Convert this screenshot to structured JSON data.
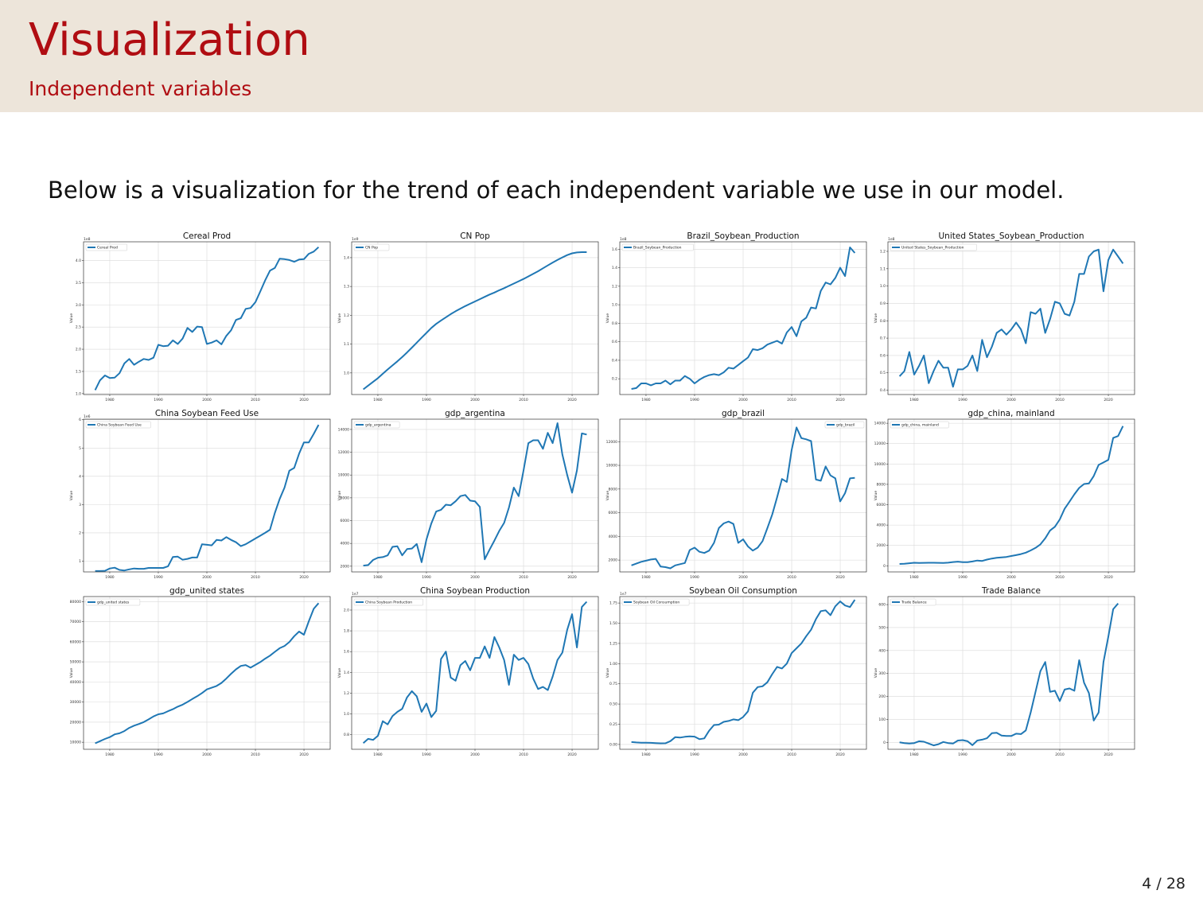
{
  "slide": {
    "title": "Visualization",
    "subtitle": "Independent variables",
    "intro": "Below is a visualization for the trend of each independent variable we use in our model.",
    "page_number": "4 / 28"
  },
  "colors": {
    "header_bg": "#ede5da",
    "title_red": "#b00d12",
    "line_blue": "#1f77b4",
    "grid": "#d9d9d9"
  },
  "chart_data": [
    {
      "type": "line",
      "title": "Cereal Prod",
      "ylabel": "Value",
      "offset_label": "1e8",
      "legend": "upper left",
      "ylim": [
        0.98,
        4.42
      ],
      "yticks": [
        "1.0",
        "1.5",
        "2.0",
        "2.5",
        "3.0",
        "3.5",
        "4.0"
      ],
      "ytick_values": [
        1.0,
        1.5,
        2.0,
        2.5,
        3.0,
        3.5,
        4.0
      ],
      "series": [
        {
          "name": "Cereal Prod",
          "x_start": 1977,
          "values": [
            1.08,
            1.3,
            1.41,
            1.35,
            1.36,
            1.46,
            1.68,
            1.78,
            1.65,
            1.72,
            1.78,
            1.76,
            1.81,
            2.1,
            2.07,
            2.08,
            2.2,
            2.12,
            2.24,
            2.48,
            2.39,
            2.51,
            2.5,
            2.12,
            2.15,
            2.2,
            2.11,
            2.3,
            2.43,
            2.66,
            2.7,
            2.91,
            2.93,
            3.06,
            3.3,
            3.55,
            3.77,
            3.83,
            4.04,
            4.03,
            4.01,
            3.97,
            4.02,
            4.03,
            4.15,
            4.2,
            4.3
          ]
        }
      ]
    },
    {
      "type": "line",
      "title": "CN Pop",
      "ylabel": "Value",
      "offset_label": "1e9",
      "legend": "upper left",
      "ylim": [
        0.925,
        1.455
      ],
      "yticks": [
        "1.0",
        "1.1",
        "1.2",
        "1.3",
        "1.4"
      ],
      "ytick_values": [
        1.0,
        1.1,
        1.2,
        1.3,
        1.4
      ],
      "series": [
        {
          "name": "CN Pop",
          "x_start": 1977,
          "values": [
            0.943,
            0.956,
            0.969,
            0.982,
            0.997,
            1.012,
            1.026,
            1.04,
            1.055,
            1.071,
            1.088,
            1.105,
            1.122,
            1.139,
            1.156,
            1.17,
            1.182,
            1.193,
            1.204,
            1.214,
            1.223,
            1.232,
            1.24,
            1.248,
            1.256,
            1.264,
            1.272,
            1.279,
            1.287,
            1.294,
            1.302,
            1.31,
            1.318,
            1.326,
            1.335,
            1.344,
            1.353,
            1.363,
            1.373,
            1.383,
            1.392,
            1.401,
            1.409,
            1.415,
            1.418,
            1.419,
            1.419
          ]
        }
      ]
    },
    {
      "type": "line",
      "title": "Brazil_Soybean_Production",
      "ylabel": "Value",
      "offset_label": "1e8",
      "legend": "upper left",
      "ylim": [
        0.03,
        1.68
      ],
      "yticks": [
        "0.2",
        "0.4",
        "0.6",
        "0.8",
        "1.0",
        "1.2",
        "1.4",
        "1.6"
      ],
      "ytick_values": [
        0.2,
        0.4,
        0.6,
        0.8,
        1.0,
        1.2,
        1.4,
        1.6
      ],
      "series": [
        {
          "name": "Brazil_Soybean_Production",
          "x_start": 1977,
          "values": [
            0.09,
            0.1,
            0.15,
            0.15,
            0.13,
            0.15,
            0.15,
            0.18,
            0.14,
            0.18,
            0.18,
            0.23,
            0.2,
            0.15,
            0.19,
            0.22,
            0.24,
            0.25,
            0.24,
            0.27,
            0.32,
            0.31,
            0.35,
            0.39,
            0.43,
            0.52,
            0.51,
            0.53,
            0.57,
            0.59,
            0.61,
            0.58,
            0.7,
            0.76,
            0.66,
            0.82,
            0.86,
            0.97,
            0.96,
            1.15,
            1.24,
            1.22,
            1.29,
            1.4,
            1.31,
            1.62,
            1.56
          ]
        }
      ]
    },
    {
      "type": "line",
      "title": "United States_Soybean_Production",
      "ylabel": "Value",
      "offset_label": "1e8",
      "legend": "upper left",
      "ylim": [
        0.375,
        1.255
      ],
      "yticks": [
        "0.4",
        "0.5",
        "0.6",
        "0.7",
        "0.8",
        "0.9",
        "1.0",
        "1.1",
        "1.2"
      ],
      "ytick_values": [
        0.4,
        0.5,
        0.6,
        0.7,
        0.8,
        0.9,
        1.0,
        1.1,
        1.2
      ],
      "series": [
        {
          "name": "United States_Soybean_Production",
          "x_start": 1977,
          "values": [
            0.48,
            0.51,
            0.62,
            0.49,
            0.54,
            0.6,
            0.44,
            0.51,
            0.57,
            0.53,
            0.53,
            0.42,
            0.52,
            0.52,
            0.54,
            0.6,
            0.51,
            0.69,
            0.59,
            0.65,
            0.73,
            0.75,
            0.72,
            0.75,
            0.79,
            0.75,
            0.67,
            0.85,
            0.84,
            0.87,
            0.73,
            0.81,
            0.91,
            0.9,
            0.84,
            0.83,
            0.91,
            1.07,
            1.07,
            1.17,
            1.2,
            1.21,
            0.97,
            1.15,
            1.21,
            1.17,
            1.13
          ]
        }
      ]
    },
    {
      "type": "line",
      "title": "China Soybean Feed Use",
      "ylabel": "Value",
      "offset_label": "1e6",
      "legend": "upper left",
      "ylim": [
        0.62,
        6.02
      ],
      "yticks": [
        "1",
        "2",
        "3",
        "4",
        "5",
        "6"
      ],
      "ytick_values": [
        1,
        2,
        3,
        4,
        5,
        6
      ],
      "series": [
        {
          "name": "China Soybean Feed Use",
          "x_start": 1977,
          "values": [
            0.65,
            0.65,
            0.66,
            0.74,
            0.77,
            0.69,
            0.67,
            0.71,
            0.74,
            0.73,
            0.73,
            0.76,
            0.76,
            0.76,
            0.76,
            0.82,
            1.15,
            1.16,
            1.05,
            1.08,
            1.13,
            1.13,
            1.6,
            1.58,
            1.56,
            1.75,
            1.73,
            1.85,
            1.75,
            1.67,
            1.53,
            1.6,
            1.7,
            1.8,
            1.9,
            2.0,
            2.11,
            2.7,
            3.2,
            3.6,
            4.2,
            4.3,
            4.8,
            5.2,
            5.2,
            5.5,
            5.82
          ]
        }
      ]
    },
    {
      "type": "line",
      "title": "gdp_argentina",
      "ylabel": "Value",
      "offset_label": "",
      "legend": "upper left",
      "ylim": [
        1500,
        14900
      ],
      "yticks": [
        "2000",
        "4000",
        "6000",
        "8000",
        "10000",
        "12000",
        "14000"
      ],
      "ytick_values": [
        2000,
        4000,
        6000,
        8000,
        10000,
        12000,
        14000
      ],
      "series": [
        {
          "name": "gdp_argentina",
          "x_start": 1977,
          "values": [
            2050,
            2100,
            2550,
            2750,
            2800,
            2950,
            3700,
            3750,
            2950,
            3500,
            3550,
            3950,
            2350,
            4350,
            5750,
            6800,
            6950,
            7400,
            7350,
            7700,
            8150,
            8250,
            7750,
            7700,
            7200,
            2600,
            3450,
            4250,
            5100,
            5800,
            7150,
            8900,
            8150,
            10400,
            12800,
            13050,
            13050,
            12300,
            13700,
            12800,
            14550,
            11800,
            10000,
            8450,
            10400,
            13650,
            13550
          ]
        }
      ]
    },
    {
      "type": "line",
      "title": "gdp_brazil",
      "ylabel": "Value",
      "offset_label": "",
      "legend": "upper right",
      "ylim": [
        1000,
        13900
      ],
      "yticks": [
        "2000",
        "4000",
        "6000",
        "8000",
        "10000",
        "12000"
      ],
      "ytick_values": [
        2000,
        4000,
        6000,
        8000,
        10000,
        12000
      ],
      "series": [
        {
          "name": "gdp_brazil",
          "x_start": 1977,
          "values": [
            1550,
            1700,
            1850,
            1950,
            2050,
            2100,
            1450,
            1400,
            1300,
            1550,
            1650,
            1750,
            2850,
            3050,
            2700,
            2600,
            2800,
            3450,
            4700,
            5100,
            5250,
            5050,
            3450,
            3750,
            3150,
            2800,
            3050,
            3600,
            4700,
            5850,
            7300,
            8850,
            8600,
            11300,
            13200,
            12300,
            12200,
            12050,
            8800,
            8700,
            9900,
            9150,
            8900,
            6950,
            7650,
            8900,
            8950
          ]
        }
      ]
    },
    {
      "type": "line",
      "title": "gdp_china, mainland",
      "ylabel": "Value",
      "offset_label": "",
      "legend": "upper left",
      "ylim": [
        -600,
        14400
      ],
      "yticks": [
        "0",
        "2000",
        "4000",
        "6000",
        "8000",
        "10000",
        "12000",
        "14000"
      ],
      "ytick_values": [
        0,
        2000,
        4000,
        6000,
        8000,
        10000,
        12000,
        14000
      ],
      "series": [
        {
          "name": "gdp_china, mainland",
          "x_start": 1977,
          "values": [
            180,
            200,
            250,
            300,
            280,
            290,
            300,
            300,
            290,
            280,
            310,
            370,
            410,
            350,
            360,
            420,
            520,
            480,
            610,
            710,
            780,
            830,
            870,
            960,
            1050,
            1150,
            1290,
            1510,
            1760,
            2100,
            2700,
            3470,
            3840,
            4560,
            5600,
            6300,
            7020,
            7650,
            8030,
            8090,
            8820,
            9910,
            10150,
            10410,
            12560,
            12740,
            13720
          ]
        }
      ]
    },
    {
      "type": "line",
      "title": "gdp_united states",
      "ylabel": "Value",
      "offset_label": "",
      "legend": "upper left",
      "ylim": [
        6500,
        82500
      ],
      "yticks": [
        "10000",
        "20000",
        "30000",
        "40000",
        "50000",
        "60000",
        "70000",
        "80000"
      ],
      "ytick_values": [
        10000,
        20000,
        30000,
        40000,
        50000,
        60000,
        70000,
        80000
      ],
      "series": [
        {
          "name": "gdp_united states",
          "x_start": 1977,
          "values": [
            9450,
            10550,
            11650,
            12550,
            13950,
            14450,
            15550,
            17150,
            18250,
            19100,
            20050,
            21400,
            22850,
            23900,
            24350,
            25450,
            26450,
            27700,
            28700,
            30050,
            31500,
            32900,
            34500,
            36300,
            37150,
            38000,
            39500,
            41700,
            44100,
            46300,
            48000,
            48400,
            47100,
            48500,
            49900,
            51600,
            53100,
            55000,
            56800,
            57900,
            59900,
            62800,
            65100,
            63500,
            70200,
            76400,
            79200
          ]
        }
      ]
    },
    {
      "type": "line",
      "title": "China Soybean Production",
      "ylabel": "Value",
      "offset_label": "1e7",
      "legend": "upper left",
      "ylim": [
        0.66,
        2.13
      ],
      "yticks": [
        "0.8",
        "1.0",
        "1.2",
        "1.4",
        "1.6",
        "1.8",
        "2.0"
      ],
      "ytick_values": [
        0.8,
        1.0,
        1.2,
        1.4,
        1.6,
        1.8,
        2.0
      ],
      "series": [
        {
          "name": "China Soybean Production",
          "x_start": 1977,
          "values": [
            0.72,
            0.76,
            0.75,
            0.79,
            0.93,
            0.9,
            0.98,
            1.02,
            1.05,
            1.16,
            1.22,
            1.17,
            1.02,
            1.1,
            0.97,
            1.03,
            1.53,
            1.6,
            1.35,
            1.32,
            1.47,
            1.51,
            1.42,
            1.54,
            1.54,
            1.65,
            1.54,
            1.74,
            1.64,
            1.52,
            1.28,
            1.57,
            1.52,
            1.54,
            1.48,
            1.34,
            1.24,
            1.26,
            1.23,
            1.36,
            1.52,
            1.59,
            1.81,
            1.96,
            1.64,
            2.03,
            2.08
          ]
        }
      ]
    },
    {
      "type": "line",
      "title": "Soybean Oil Consumption",
      "ylabel": "Value",
      "offset_label": "1e7",
      "legend": "upper left",
      "ylim": [
        -0.06,
        1.83
      ],
      "yticks": [
        "0.00",
        "0.25",
        "0.50",
        "0.75",
        "1.00",
        "1.25",
        "1.50",
        "1.75"
      ],
      "ytick_values": [
        0,
        0.25,
        0.5,
        0.75,
        1.0,
        1.25,
        1.5,
        1.75
      ],
      "series": [
        {
          "name": "Soybean Oil Consumption",
          "x_start": 1977,
          "values": [
            0.03,
            0.025,
            0.022,
            0.021,
            0.02,
            0.017,
            0.014,
            0.015,
            0.04,
            0.09,
            0.085,
            0.095,
            0.1,
            0.097,
            0.065,
            0.075,
            0.17,
            0.24,
            0.245,
            0.28,
            0.29,
            0.31,
            0.3,
            0.34,
            0.41,
            0.64,
            0.71,
            0.72,
            0.77,
            0.87,
            0.96,
            0.94,
            1.0,
            1.13,
            1.19,
            1.25,
            1.34,
            1.42,
            1.55,
            1.65,
            1.66,
            1.6,
            1.71,
            1.77,
            1.72,
            1.7,
            1.79
          ]
        }
      ]
    },
    {
      "type": "line",
      "title": "Trade Balance",
      "ylabel": "Value",
      "offset_label": "",
      "legend": "upper left",
      "ylim": [
        -30,
        635
      ],
      "yticks": [
        "0",
        "100",
        "200",
        "300",
        "400",
        "500",
        "600"
      ],
      "ytick_values": [
        0,
        100,
        200,
        300,
        400,
        500,
        600
      ],
      "series": [
        {
          "name": "Trade Balance",
          "x_start": 1977,
          "values": [
            0,
            -3,
            -5,
            -3,
            5,
            3,
            -5,
            -13,
            -8,
            2,
            -3,
            -5,
            8,
            10,
            5,
            -12,
            8,
            12,
            18,
            40,
            42,
            30,
            28,
            28,
            38,
            36,
            52,
            130,
            220,
            310,
            350,
            220,
            225,
            180,
            230,
            235,
            225,
            358,
            260,
            215,
            95,
            130,
            350,
            460,
            580,
            605
          ]
        }
      ]
    }
  ],
  "x_axis": {
    "xlim": [
      1974.6,
      2025.4
    ],
    "ticks": [
      "1980",
      "1990",
      "2000",
      "2010",
      "2020"
    ],
    "tick_values": [
      1980,
      1990,
      2000,
      2010,
      2020
    ]
  }
}
